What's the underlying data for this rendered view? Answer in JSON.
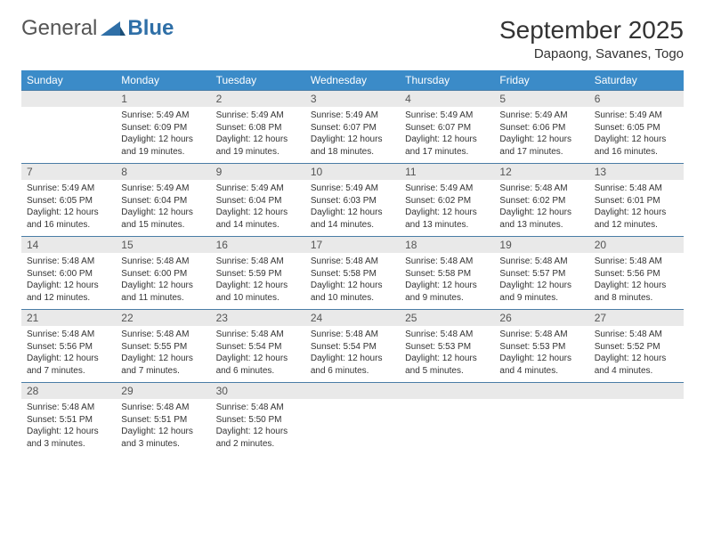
{
  "logo": {
    "general": "General",
    "blue": "Blue"
  },
  "title": "September 2025",
  "location": "Dapaong, Savanes, Togo",
  "weekdays": [
    "Sunday",
    "Monday",
    "Tuesday",
    "Wednesday",
    "Thursday",
    "Friday",
    "Saturday"
  ],
  "colors": {
    "header_bg": "#3b8bc8",
    "header_fg": "#ffffff",
    "daynum_bg": "#e9e9e9",
    "divider": "#4a7da6",
    "text": "#333333",
    "logo_gray": "#555555",
    "logo_blue": "#2f6fa7",
    "page_bg": "#ffffff"
  },
  "typography": {
    "title_fontsize": 28,
    "location_fontsize": 15,
    "weekday_fontsize": 12,
    "daynum_fontsize": 12,
    "cell_fontsize": 10,
    "font_family": "Arial"
  },
  "layout": {
    "columns": 7,
    "rows": 5,
    "first_weekday_offset": 1,
    "days_in_month": 30
  },
  "days": [
    {
      "n": 1,
      "sunrise": "5:49 AM",
      "sunset": "6:09 PM",
      "daylight": "12 hours and 19 minutes."
    },
    {
      "n": 2,
      "sunrise": "5:49 AM",
      "sunset": "6:08 PM",
      "daylight": "12 hours and 19 minutes."
    },
    {
      "n": 3,
      "sunrise": "5:49 AM",
      "sunset": "6:07 PM",
      "daylight": "12 hours and 18 minutes."
    },
    {
      "n": 4,
      "sunrise": "5:49 AM",
      "sunset": "6:07 PM",
      "daylight": "12 hours and 17 minutes."
    },
    {
      "n": 5,
      "sunrise": "5:49 AM",
      "sunset": "6:06 PM",
      "daylight": "12 hours and 17 minutes."
    },
    {
      "n": 6,
      "sunrise": "5:49 AM",
      "sunset": "6:05 PM",
      "daylight": "12 hours and 16 minutes."
    },
    {
      "n": 7,
      "sunrise": "5:49 AM",
      "sunset": "6:05 PM",
      "daylight": "12 hours and 16 minutes."
    },
    {
      "n": 8,
      "sunrise": "5:49 AM",
      "sunset": "6:04 PM",
      "daylight": "12 hours and 15 minutes."
    },
    {
      "n": 9,
      "sunrise": "5:49 AM",
      "sunset": "6:04 PM",
      "daylight": "12 hours and 14 minutes."
    },
    {
      "n": 10,
      "sunrise": "5:49 AM",
      "sunset": "6:03 PM",
      "daylight": "12 hours and 14 minutes."
    },
    {
      "n": 11,
      "sunrise": "5:49 AM",
      "sunset": "6:02 PM",
      "daylight": "12 hours and 13 minutes."
    },
    {
      "n": 12,
      "sunrise": "5:48 AM",
      "sunset": "6:02 PM",
      "daylight": "12 hours and 13 minutes."
    },
    {
      "n": 13,
      "sunrise": "5:48 AM",
      "sunset": "6:01 PM",
      "daylight": "12 hours and 12 minutes."
    },
    {
      "n": 14,
      "sunrise": "5:48 AM",
      "sunset": "6:00 PM",
      "daylight": "12 hours and 12 minutes."
    },
    {
      "n": 15,
      "sunrise": "5:48 AM",
      "sunset": "6:00 PM",
      "daylight": "12 hours and 11 minutes."
    },
    {
      "n": 16,
      "sunrise": "5:48 AM",
      "sunset": "5:59 PM",
      "daylight": "12 hours and 10 minutes."
    },
    {
      "n": 17,
      "sunrise": "5:48 AM",
      "sunset": "5:58 PM",
      "daylight": "12 hours and 10 minutes."
    },
    {
      "n": 18,
      "sunrise": "5:48 AM",
      "sunset": "5:58 PM",
      "daylight": "12 hours and 9 minutes."
    },
    {
      "n": 19,
      "sunrise": "5:48 AM",
      "sunset": "5:57 PM",
      "daylight": "12 hours and 9 minutes."
    },
    {
      "n": 20,
      "sunrise": "5:48 AM",
      "sunset": "5:56 PM",
      "daylight": "12 hours and 8 minutes."
    },
    {
      "n": 21,
      "sunrise": "5:48 AM",
      "sunset": "5:56 PM",
      "daylight": "12 hours and 7 minutes."
    },
    {
      "n": 22,
      "sunrise": "5:48 AM",
      "sunset": "5:55 PM",
      "daylight": "12 hours and 7 minutes."
    },
    {
      "n": 23,
      "sunrise": "5:48 AM",
      "sunset": "5:54 PM",
      "daylight": "12 hours and 6 minutes."
    },
    {
      "n": 24,
      "sunrise": "5:48 AM",
      "sunset": "5:54 PM",
      "daylight": "12 hours and 6 minutes."
    },
    {
      "n": 25,
      "sunrise": "5:48 AM",
      "sunset": "5:53 PM",
      "daylight": "12 hours and 5 minutes."
    },
    {
      "n": 26,
      "sunrise": "5:48 AM",
      "sunset": "5:53 PM",
      "daylight": "12 hours and 4 minutes."
    },
    {
      "n": 27,
      "sunrise": "5:48 AM",
      "sunset": "5:52 PM",
      "daylight": "12 hours and 4 minutes."
    },
    {
      "n": 28,
      "sunrise": "5:48 AM",
      "sunset": "5:51 PM",
      "daylight": "12 hours and 3 minutes."
    },
    {
      "n": 29,
      "sunrise": "5:48 AM",
      "sunset": "5:51 PM",
      "daylight": "12 hours and 3 minutes."
    },
    {
      "n": 30,
      "sunrise": "5:48 AM",
      "sunset": "5:50 PM",
      "daylight": "12 hours and 2 minutes."
    }
  ],
  "labels": {
    "sunrise": "Sunrise:",
    "sunset": "Sunset:",
    "daylight": "Daylight:"
  }
}
